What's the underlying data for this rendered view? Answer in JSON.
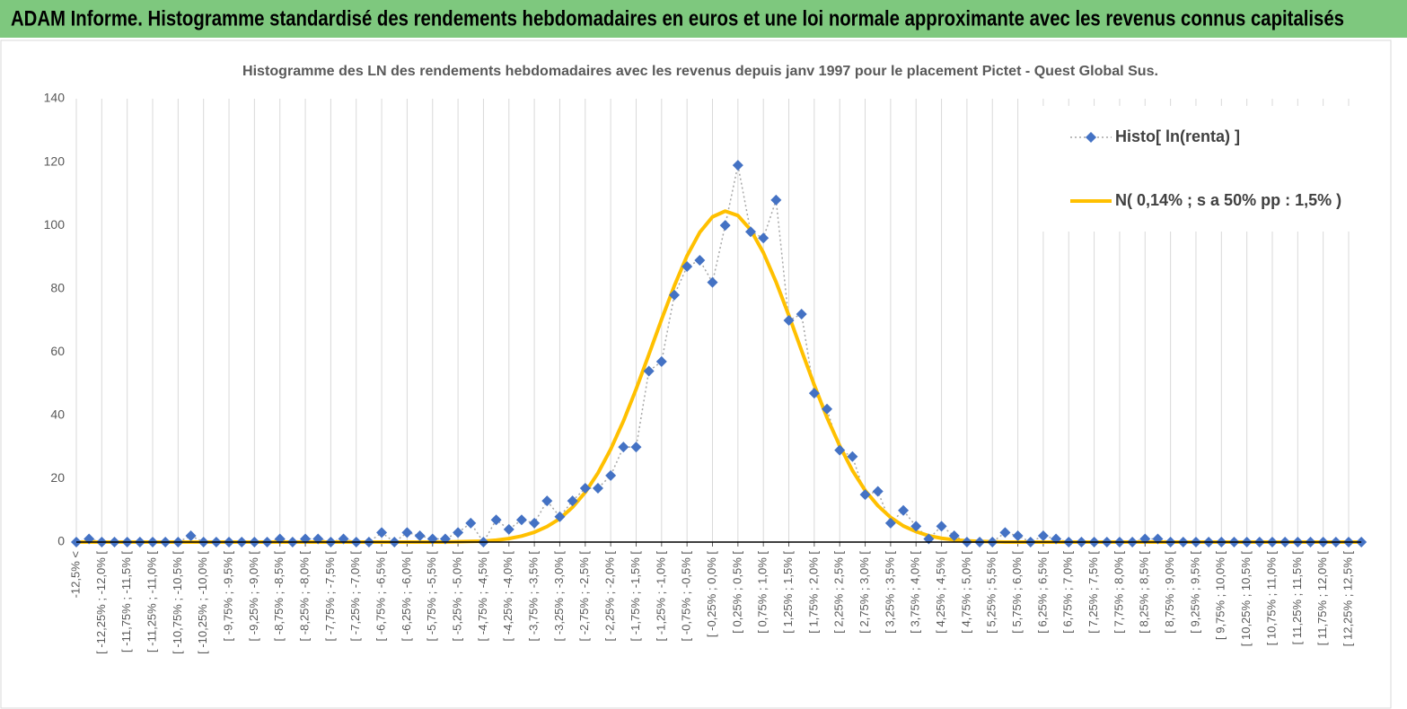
{
  "header": {
    "title": "ADAM Informe. Histogramme standardisé des rendements hebdomadaires en euros et une loi normale approximante avec les revenus connus capitalisés"
  },
  "chart_data": {
    "type": "line",
    "title": "Histogramme  des LN des rendements hebdomadaires avec les revenus depuis janv 1997 pour le placement Pictet - Quest Global Sus.",
    "categories": [
      "-12,5% <",
      null,
      "[ -12,25% ; -12,0% [",
      null,
      "[ -11,75% ; -11,5% [",
      null,
      "[ -11,25% ; -11,0% [",
      null,
      "[ -10,75% ; -10,5% [",
      null,
      "[ -10,25% ; -10,0% [",
      null,
      "[ -9,75% ; -9,5% [",
      null,
      "[ -9,25% ; -9,0% [",
      null,
      "[ -8,75% ; -8,5% [",
      null,
      "[ -8,25% ; -8,0% [",
      null,
      "[ -7,75% ; -7,5% [",
      null,
      "[ -7,25% ; -7,0% [",
      null,
      "[ -6,75% ; -6,5% [",
      null,
      "[ -6,25% ; -6,0% [",
      null,
      "[ -5,75% ; -5,5% [",
      null,
      "[ -5,25% ; -5,0% [",
      null,
      "[ -4,75% ; -4,5% [",
      null,
      "[ -4,25% ; -4,0% [",
      null,
      "[ -3,75% ; -3,5% [",
      null,
      "[ -3,25% ; -3,0% [",
      null,
      "[ -2,75% ; -2,5% [",
      null,
      "[ -2,25% ; -2,0% [",
      null,
      "[ -1,75% ; -1,5% [",
      null,
      "[ -1,25% ; -1,0% [",
      null,
      "[ -0,75% ; -0,5% [",
      null,
      "[ -0,25% ; 0,0% [",
      null,
      "[ 0,25% ; 0,5% [",
      null,
      "[ 0,75% ; 1,0% [",
      null,
      "[ 1,25% ; 1,5% [",
      null,
      "[ 1,75% ; 2,0% [",
      null,
      "[ 2,25% ; 2,5% [",
      null,
      "[ 2,75% ; 3,0% [",
      null,
      "[ 3,25% ; 3,5% [",
      null,
      "[ 3,75% ; 4,0% [",
      null,
      "[ 4,25% ; 4,5% [",
      null,
      "[ 4,75% ; 5,0% [",
      null,
      "[ 5,25% ; 5,5% [",
      null,
      "[ 5,75% ; 6,0% [",
      null,
      "[ 6,25% ; 6,5% [",
      null,
      "[ 6,75% ; 7,0% [",
      null,
      "[ 7,25% ; 7,5% [",
      null,
      "[ 7,75% ; 8,0% [",
      null,
      "[ 8,25% ; 8,5% [",
      null,
      "[ 8,75% ; 9,0% [",
      null,
      "[ 9,25% ; 9,5% [",
      null,
      "[ 9,75% ; 10,0% [",
      null,
      "[ 10,25% ; 10,5% [",
      null,
      "[ 10,75% ; 11,0% [",
      null,
      "[ 11,25% ; 11,5% [",
      null,
      "[ 11,75% ; 12,0% [",
      null,
      "[ 12,25% ; 12,5% [",
      null
    ],
    "series": [
      {
        "name": "Histo[ ln(renta) ]",
        "color": "#4472c4",
        "marker": "diamond",
        "values": [
          0,
          1,
          0,
          0,
          0,
          0,
          0,
          0,
          0,
          2,
          0,
          0,
          0,
          0,
          0,
          0,
          1,
          0,
          1,
          1,
          0,
          1,
          0,
          0,
          3,
          0,
          3,
          2,
          1,
          1,
          3,
          6,
          0,
          7,
          4,
          7,
          6,
          13,
          8,
          13,
          17,
          17,
          21,
          30,
          30,
          54,
          57,
          78,
          87,
          89,
          82,
          100,
          119,
          98,
          96,
          108,
          70,
          72,
          47,
          42,
          29,
          27,
          15,
          16,
          6,
          10,
          5,
          1,
          5,
          2,
          0,
          0,
          0,
          3,
          2,
          0,
          2,
          1,
          0,
          0,
          0,
          0,
          0,
          0,
          1,
          1,
          0,
          0,
          0,
          0,
          0,
          0,
          0,
          0,
          0,
          0,
          0,
          0,
          0,
          0,
          0,
          0
        ]
      },
      {
        "name": "N( 0,14% ; s a 50% pp : 1,5% )",
        "color": "#ffc000",
        "values": [
          0,
          0,
          0,
          0,
          0,
          0,
          0,
          0,
          0,
          0,
          0,
          0,
          0,
          0,
          0,
          0,
          0,
          0,
          0,
          0,
          0,
          0,
          0,
          0,
          0,
          0,
          0,
          0,
          0,
          0,
          0.1,
          0.2,
          0.3,
          0.6,
          1.1,
          1.9,
          3.1,
          4.9,
          7.4,
          11.0,
          15.7,
          21.8,
          29.3,
          38.2,
          48.3,
          59.2,
          70.3,
          80.9,
          90.4,
          97.8,
          102.7,
          104.5,
          103.1,
          98.6,
          91.4,
          82.1,
          71.6,
          60.5,
          49.6,
          39.3,
          30.4,
          22.6,
          16.3,
          11.5,
          7.8,
          5.1,
          3.3,
          2.0,
          1.2,
          0.7,
          0.4,
          0.2,
          0.1,
          0,
          0,
          0,
          0,
          0,
          0,
          0,
          0,
          0,
          0,
          0,
          0,
          0,
          0,
          0,
          0,
          0,
          0,
          0,
          0,
          0,
          0,
          0,
          0,
          0,
          0,
          0,
          0,
          0
        ]
      }
    ],
    "ylim": [
      0,
      140
    ],
    "yticks": [
      0,
      20,
      40,
      60,
      80,
      100,
      120,
      140
    ],
    "grid": "x",
    "legend": "top-right"
  }
}
